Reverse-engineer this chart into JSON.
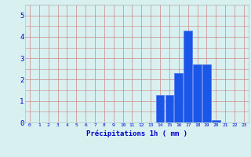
{
  "hours": [
    0,
    1,
    2,
    3,
    4,
    5,
    6,
    7,
    8,
    9,
    10,
    11,
    12,
    13,
    14,
    15,
    16,
    17,
    18,
    19,
    20,
    21,
    22,
    23
  ],
  "values": [
    0,
    0,
    0,
    0,
    0,
    0,
    0,
    0,
    0,
    0,
    0,
    0,
    0,
    0,
    1.3,
    1.3,
    2.3,
    4.3,
    2.7,
    2.7,
    0.1,
    0,
    0,
    0
  ],
  "bar_color": "#1a56e8",
  "bar_edge_color": "#5577ee",
  "background_color": "#d8f0f0",
  "grid_color": "#aac8c8",
  "grid_color_red": "#cc8888",
  "xlabel": "Précipitations 1h ( mm )",
  "xlabel_color": "#0000cc",
  "tick_color": "#0000cc",
  "ylim": [
    0,
    5.5
  ],
  "yticks": [
    0,
    1,
    2,
    3,
    4,
    5
  ],
  "xlim": [
    -0.5,
    23.5
  ]
}
